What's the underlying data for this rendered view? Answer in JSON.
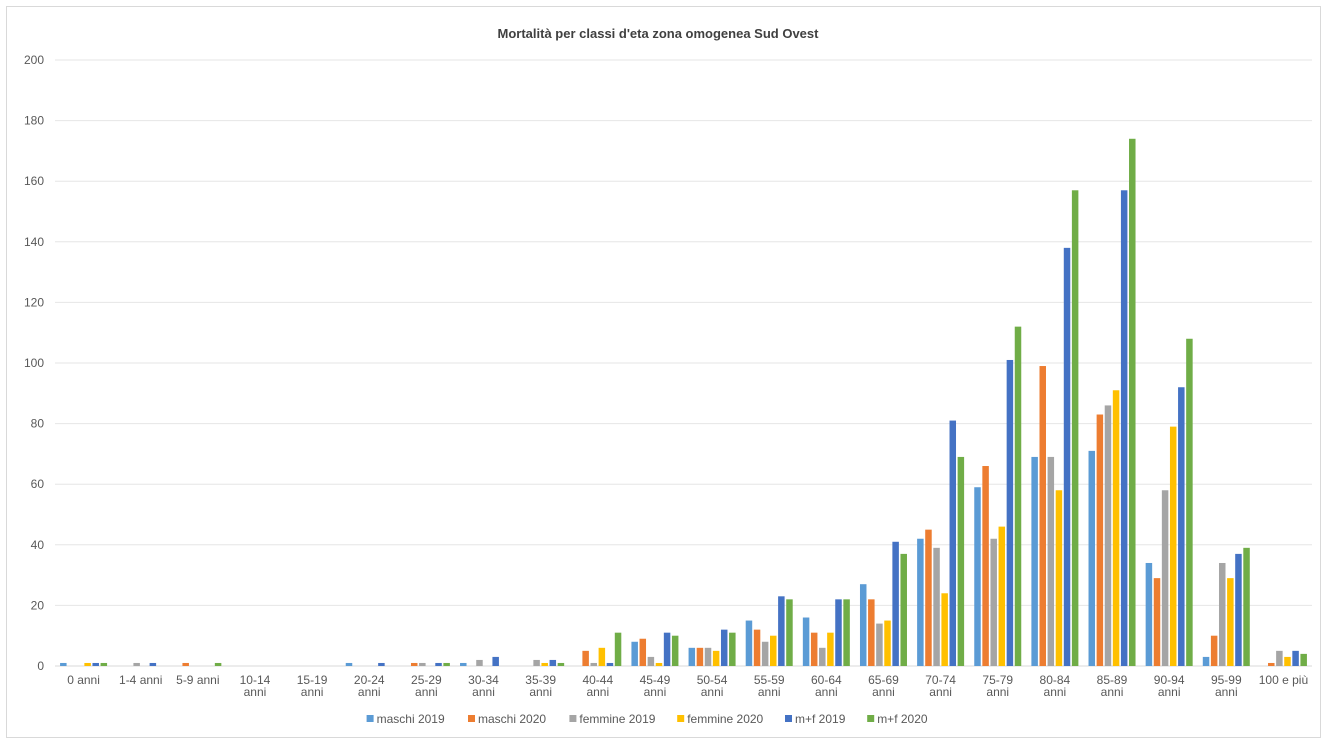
{
  "chart_data": {
    "type": "bar",
    "title": "Mortalità per classi d'eta zona omogenea Sud Ovest",
    "xlabel": "",
    "ylabel": "",
    "ylim": [
      0,
      200
    ],
    "yticks": [
      0,
      20,
      40,
      60,
      80,
      100,
      120,
      140,
      160,
      180,
      200
    ],
    "grid": true,
    "legend_position": "bottom",
    "categories": [
      [
        "0 anni"
      ],
      [
        "1-4 anni"
      ],
      [
        "5-9 anni"
      ],
      [
        "10-14",
        "anni"
      ],
      [
        "15-19",
        "anni"
      ],
      [
        "20-24",
        "anni"
      ],
      [
        "25-29",
        "anni"
      ],
      [
        "30-34",
        "anni"
      ],
      [
        "35-39",
        "anni"
      ],
      [
        "40-44",
        "anni"
      ],
      [
        "45-49",
        "anni"
      ],
      [
        "50-54",
        "anni"
      ],
      [
        "55-59",
        "anni"
      ],
      [
        "60-64",
        "anni"
      ],
      [
        "65-69",
        "anni"
      ],
      [
        "70-74",
        "anni"
      ],
      [
        "75-79",
        "anni"
      ],
      [
        "80-84",
        "anni"
      ],
      [
        "85-89",
        "anni"
      ],
      [
        "90-94",
        "anni"
      ],
      [
        "95-99",
        "anni"
      ],
      [
        "100 e più"
      ]
    ],
    "series": [
      {
        "name": "maschi 2019",
        "color": "#5b9bd5",
        "values": [
          1,
          0,
          0,
          0,
          0,
          1,
          0,
          1,
          0,
          0,
          8,
          6,
          15,
          16,
          27,
          42,
          59,
          69,
          71,
          34,
          3,
          0
        ]
      },
      {
        "name": "maschi 2020",
        "color": "#ed7d31",
        "values": [
          0,
          0,
          1,
          0,
          0,
          0,
          1,
          0,
          0,
          5,
          9,
          6,
          12,
          11,
          22,
          45,
          66,
          99,
          83,
          29,
          10,
          1
        ]
      },
      {
        "name": "femmine 2019",
        "color": "#a5a5a5",
        "values": [
          0,
          1,
          0,
          0,
          0,
          0,
          1,
          2,
          2,
          1,
          3,
          6,
          8,
          6,
          14,
          39,
          42,
          69,
          86,
          58,
          34,
          5
        ]
      },
      {
        "name": "femmine 2020",
        "color": "#ffc000",
        "values": [
          1,
          0,
          0,
          0,
          0,
          0,
          0,
          0,
          1,
          6,
          1,
          5,
          10,
          11,
          15,
          24,
          46,
          58,
          91,
          79,
          29,
          3
        ]
      },
      {
        "name": "m+f 2019",
        "color": "#4472c4",
        "values": [
          1,
          1,
          0,
          0,
          0,
          1,
          1,
          3,
          2,
          1,
          11,
          12,
          23,
          22,
          41,
          81,
          101,
          138,
          157,
          92,
          37,
          5
        ]
      },
      {
        "name": "m+f 2020",
        "color": "#70ad47",
        "values": [
          1,
          0,
          1,
          0,
          0,
          0,
          1,
          0,
          1,
          11,
          10,
          11,
          22,
          22,
          37,
          69,
          112,
          157,
          174,
          108,
          39,
          4
        ]
      }
    ]
  }
}
